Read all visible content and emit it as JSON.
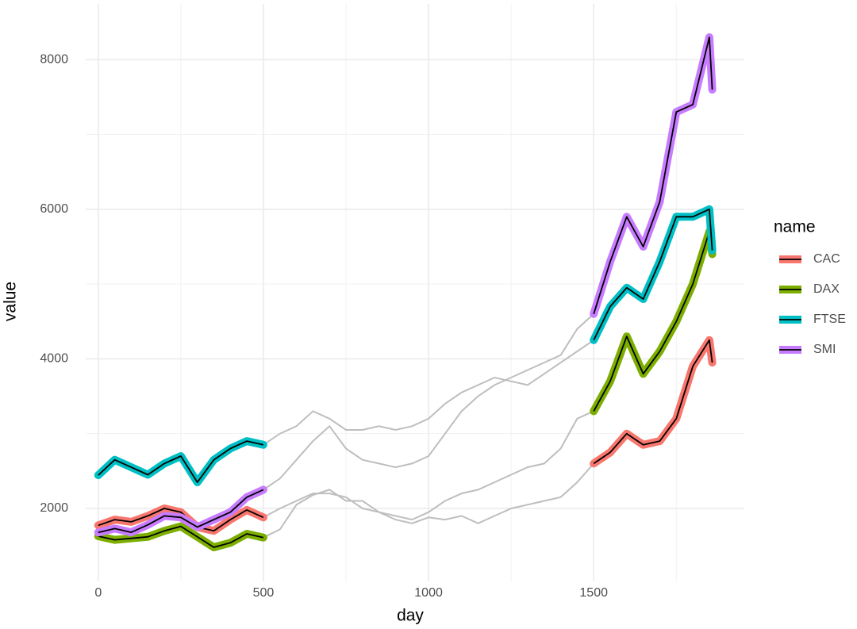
{
  "chart_data": {
    "type": "line",
    "x_label": "day",
    "y_label": "value",
    "legend_title": "name",
    "legend": "right",
    "grid": true,
    "xlim": [
      -38,
      1956
    ],
    "ylim": [
      1024,
      8745
    ],
    "xticks": [
      0,
      500,
      1000,
      1500
    ],
    "yticks": [
      2000,
      4000,
      6000,
      8000
    ],
    "context_color": "#bebebe",
    "highlight_xranges": [
      [
        0,
        500
      ],
      [
        1500,
        1859
      ]
    ],
    "x": [
      0,
      50,
      100,
      150,
      200,
      250,
      300,
      350,
      400,
      450,
      500,
      550,
      600,
      650,
      700,
      750,
      800,
      850,
      900,
      950,
      1000,
      1050,
      1100,
      1150,
      1200,
      1250,
      1300,
      1350,
      1400,
      1450,
      1500,
      1550,
      1600,
      1650,
      1700,
      1750,
      1800,
      1850,
      1859
    ],
    "series": [
      {
        "name": "CAC",
        "color": "#F8766D",
        "values": [
          1773,
          1850,
          1820,
          1900,
          2000,
          1950,
          1750,
          1700,
          1850,
          1980,
          1880,
          2000,
          2100,
          2200,
          2200,
          2150,
          2000,
          1950,
          1850,
          1800,
          1880,
          1850,
          1900,
          1800,
          1900,
          2000,
          2050,
          2100,
          2150,
          2350,
          2600,
          2750,
          3000,
          2850,
          2900,
          3200,
          3900,
          4250,
          3950
        ]
      },
      {
        "name": "DAX",
        "color": "#7CAE00",
        "values": [
          1629,
          1580,
          1600,
          1620,
          1700,
          1760,
          1620,
          1480,
          1540,
          1660,
          1610,
          1720,
          2050,
          2180,
          2250,
          2100,
          2100,
          1950,
          1900,
          1850,
          1950,
          2100,
          2200,
          2250,
          2350,
          2450,
          2550,
          2600,
          2800,
          3200,
          3300,
          3700,
          4300,
          3800,
          4100,
          4500,
          5000,
          5700,
          5400
        ]
      },
      {
        "name": "FTSE",
        "color": "#00BFC4",
        "values": [
          2444,
          2650,
          2550,
          2450,
          2600,
          2700,
          2350,
          2650,
          2800,
          2900,
          2850,
          3000,
          3100,
          3300,
          3200,
          3050,
          3050,
          3100,
          3050,
          3100,
          3200,
          3400,
          3550,
          3650,
          3750,
          3700,
          3650,
          3800,
          3950,
          4100,
          4250,
          4700,
          4950,
          4800,
          5300,
          5900,
          5900,
          6000,
          5450
        ]
      },
      {
        "name": "SMI",
        "color": "#C77CFF",
        "values": [
          1678,
          1730,
          1680,
          1780,
          1900,
          1880,
          1750,
          1850,
          1950,
          2150,
          2250,
          2400,
          2650,
          2900,
          3100,
          2800,
          2650,
          2600,
          2550,
          2600,
          2700,
          3000,
          3300,
          3500,
          3650,
          3750,
          3850,
          3950,
          4050,
          4400,
          4600,
          5300,
          5900,
          5500,
          6100,
          7300,
          7400,
          8300,
          7600
        ]
      }
    ]
  }
}
